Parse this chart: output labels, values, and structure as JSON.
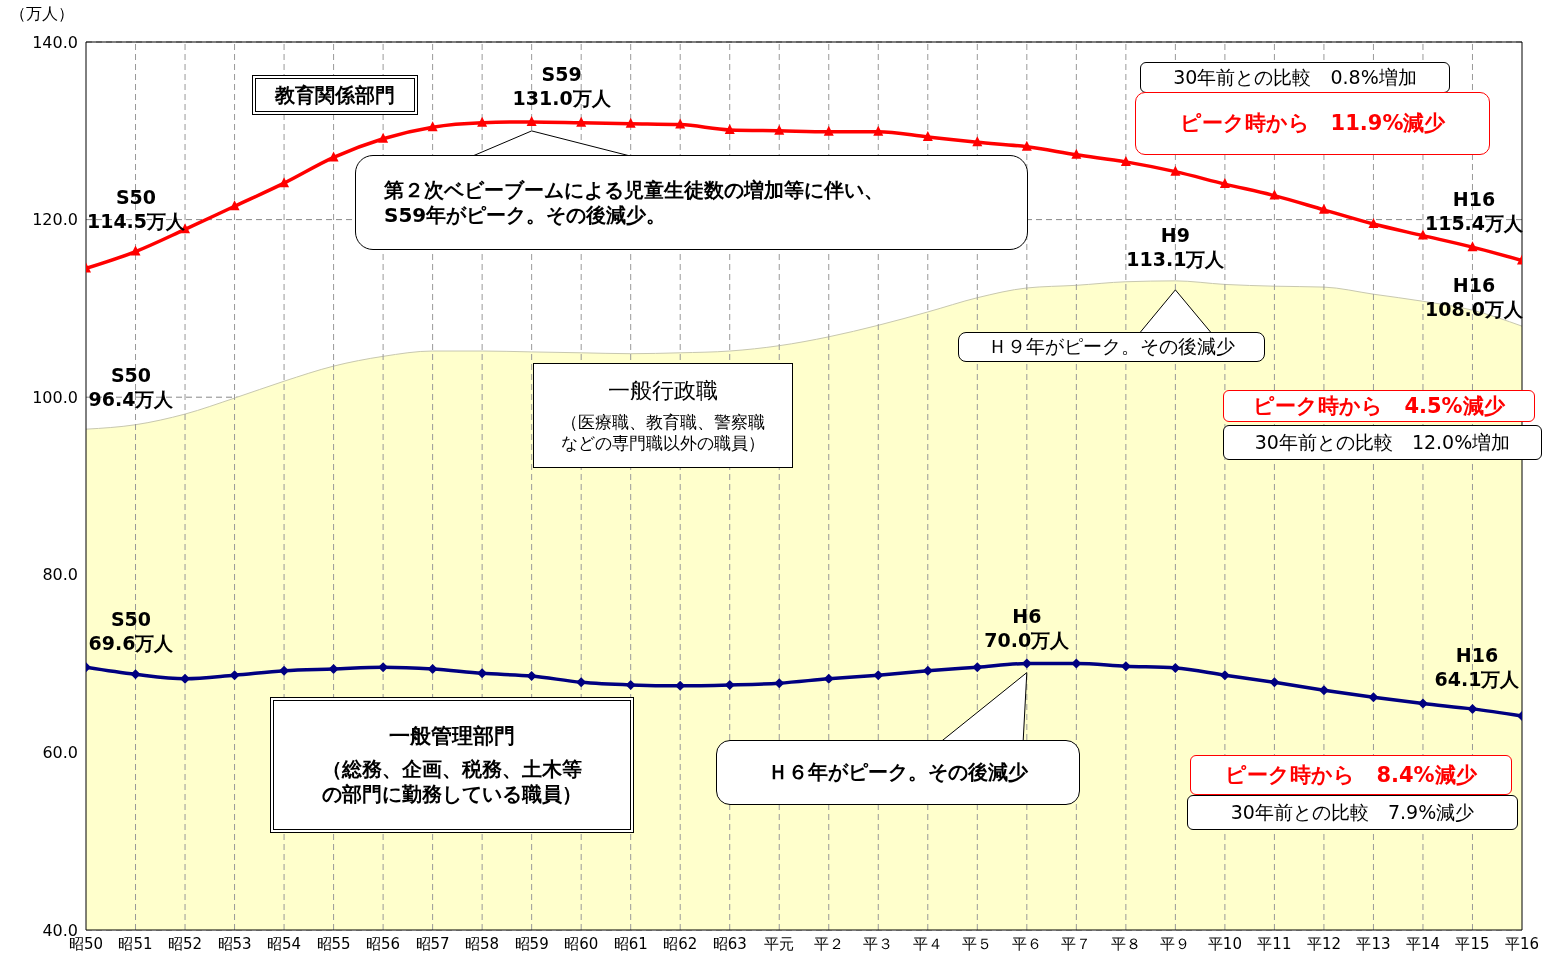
{
  "chart_data": {
    "type": "line",
    "ylabel": "（万人）",
    "categories": [
      "昭50",
      "昭51",
      "昭52",
      "昭53",
      "昭54",
      "昭55",
      "昭56",
      "昭57",
      "昭58",
      "昭59",
      "昭60",
      "昭61",
      "昭62",
      "昭63",
      "平元",
      "平２",
      "平３",
      "平４",
      "平５",
      "平６",
      "平７",
      "平８",
      "平９",
      "平10",
      "平11",
      "平12",
      "平13",
      "平14",
      "平15",
      "平16"
    ],
    "series": [
      {
        "type": "area",
        "color": "#ffffcc",
        "values": [
          96.4,
          96.9,
          98.1,
          99.9,
          101.8,
          103.5,
          104.6,
          105.2,
          105.2,
          105.1,
          105.0,
          104.9,
          105.0,
          105.2,
          105.8,
          106.8,
          108.1,
          109.6,
          111.2,
          112.3,
          112.6,
          113.0,
          113.1,
          112.7,
          112.5,
          112.4,
          111.6,
          110.8,
          109.8,
          108.0
        ]
      },
      {
        "color": "#ff0000",
        "marker": "triangle",
        "values": [
          114.5,
          116.4,
          118.9,
          121.5,
          124.1,
          127.0,
          129.1,
          130.4,
          130.9,
          131.0,
          130.9,
          130.8,
          130.7,
          130.1,
          130.0,
          129.9,
          129.9,
          129.3,
          128.7,
          128.2,
          127.3,
          126.5,
          125.4,
          124.0,
          122.7,
          121.1,
          119.5,
          118.2,
          116.9,
          115.4
        ]
      },
      {
        "color": "#000080",
        "marker": "diamond",
        "values": [
          69.6,
          68.8,
          68.3,
          68.7,
          69.2,
          69.4,
          69.6,
          69.4,
          68.9,
          68.6,
          67.9,
          67.6,
          67.5,
          67.6,
          67.8,
          68.3,
          68.7,
          69.2,
          69.6,
          70.0,
          70.0,
          69.7,
          69.5,
          68.7,
          67.9,
          67.0,
          66.2,
          65.5,
          64.9,
          64.1
        ]
      }
    ],
    "ylim": [
      40,
      140
    ],
    "yticks": [
      {
        "value": 40,
        "label": "40.0"
      },
      {
        "value": 60,
        "label": "60.0"
      },
      {
        "value": 80,
        "label": "80.0"
      },
      {
        "value": 100,
        "label": "100.0"
      },
      {
        "value": 120,
        "label": "120.0"
      },
      {
        "value": 140,
        "label": "140.0"
      }
    ],
    "grid": true,
    "annotations": [
      {
        "text": "S50\n114.5万人",
        "x": "昭50",
        "y": 114.5
      },
      {
        "text": "S59\n131.0万人",
        "x": "昭59",
        "y": 131.0
      },
      {
        "text": "H16\n115.4万人",
        "x": "平16",
        "y": 115.4
      },
      {
        "text": "S50\n96.4万人",
        "x": "昭50",
        "y": 96.4
      },
      {
        "text": "H9\n113.1万人",
        "x": "平９",
        "y": 113.1
      },
      {
        "text": "H16\n108.0万人",
        "x": "平16",
        "y": 108.0
      },
      {
        "text": "S50\n69.6万人",
        "x": "昭50",
        "y": 69.6
      },
      {
        "text": "H6\n70.0万人",
        "x": "平６",
        "y": 70.0
      },
      {
        "text": "H16\n64.1万人",
        "x": "平16",
        "y": 64.1
      },
      {
        "text": "第２次ベビーブームによる児童生徒数の増加等に伴い、S59年がピーク。その後減少。",
        "x": "昭59",
        "y": 131.0
      },
      {
        "text": "Ｈ９年がピーク。その後減少",
        "x": "平９",
        "y": 113.1
      },
      "Ｈ６年がピーク。その後減少",
      "教育関係部門",
      "一般行政職",
      "（医療職、教育職、警察職などの専門職以外の職員）",
      "一般管理部門",
      "（総務、企画、税務、土木等の部門に勤務している職員）",
      "30年前との比較　0.8%増加",
      "ピーク時から　11.9%減少",
      "ピーク時から　4.5%減少",
      "30年前との比較　12.0%増加",
      "ピーク時から　8.4%減少",
      "30年前との比較　7.9%減少"
    ]
  }
}
